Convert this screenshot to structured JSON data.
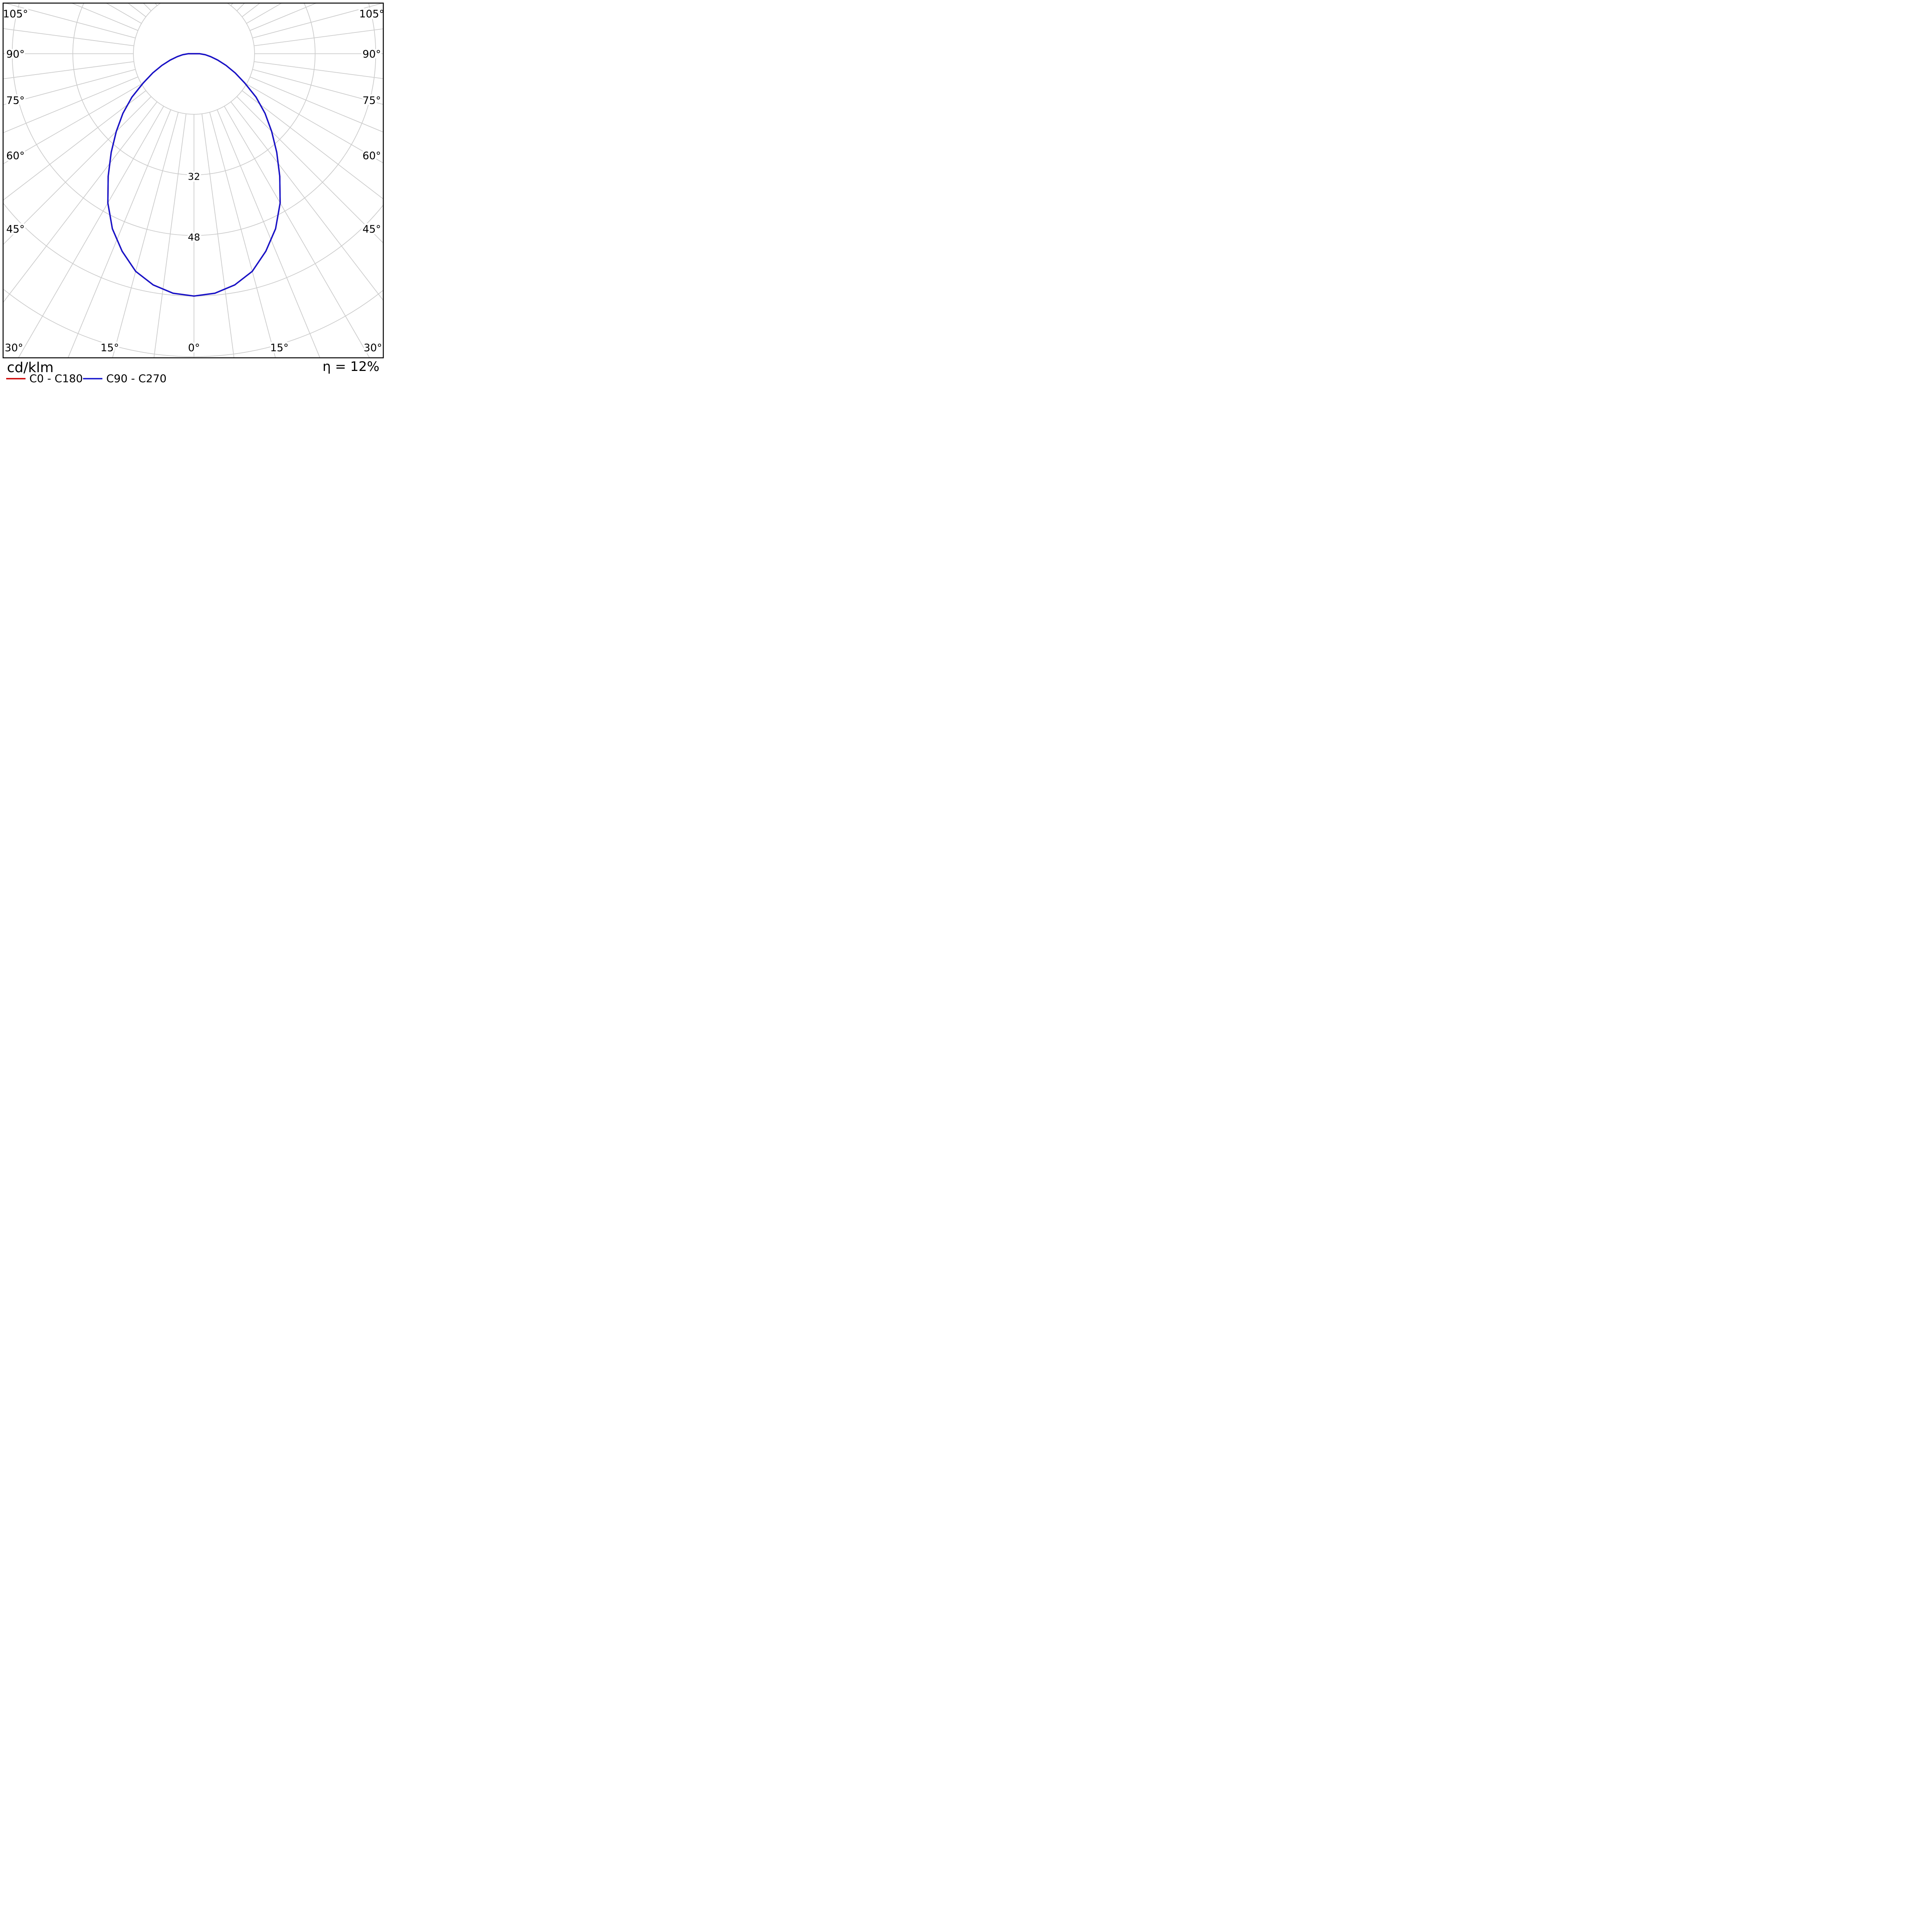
{
  "chart_data": {
    "type": "polar_line",
    "description": "Photometric polar luminous intensity distribution curve",
    "unit_label": "cd/klm",
    "efficiency": "η = 12%",
    "legend": [
      {
        "label": "C0 - C180",
        "color": "#cc0000"
      },
      {
        "label": "C90 - C270",
        "color": "#1414cc"
      }
    ],
    "grid": {
      "color": "#cccccc",
      "ring_step": 16,
      "ring_values": [
        16,
        32,
        48,
        64,
        80,
        96
      ],
      "ring_label_values": [
        32,
        48
      ],
      "angle_step_deg": 7.5
    },
    "axis_labels": {
      "left": [
        "105°",
        "90°",
        "75°",
        "60°",
        "45°"
      ],
      "right": [
        "105°",
        "90°",
        "75°",
        "60°",
        "45°"
      ],
      "bottom": [
        "30°",
        "15°",
        "0°",
        "15°",
        "30°"
      ]
    },
    "series": [
      {
        "name": "C0 - C180",
        "color": "#cc0000",
        "gamma_deg": [
          0,
          5,
          10,
          15,
          20,
          25,
          30,
          35,
          40,
          45,
          50,
          55,
          60,
          65,
          70,
          75,
          80,
          85,
          90
        ],
        "cd_per_klm": [
          64,
          63.5,
          62,
          59.5,
          55.5,
          51,
          45.5,
          39.5,
          34,
          29,
          24.5,
          20,
          15.5,
          12,
          9,
          6.5,
          4.5,
          3,
          1.5
        ]
      },
      {
        "name": "C90 - C270",
        "color": "#1414cc",
        "gamma_deg": [
          0,
          5,
          10,
          15,
          20,
          25,
          30,
          35,
          40,
          45,
          50,
          55,
          60,
          65,
          70,
          75,
          80,
          85,
          90
        ],
        "cd_per_klm": [
          64,
          63.5,
          62,
          59.5,
          55.5,
          51,
          45.5,
          39.5,
          34,
          29,
          24.5,
          20,
          15.5,
          12,
          9,
          6.5,
          4.5,
          3,
          1.5
        ]
      }
    ]
  }
}
